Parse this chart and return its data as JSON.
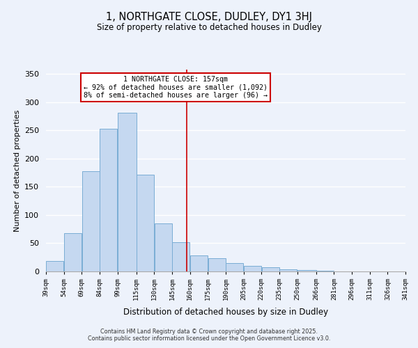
{
  "title": "1, NORTHGATE CLOSE, DUDLEY, DY1 3HJ",
  "subtitle": "Size of property relative to detached houses in Dudley",
  "xlabel": "Distribution of detached houses by size in Dudley",
  "ylabel": "Number of detached properties",
  "bin_labels": [
    "39sqm",
    "54sqm",
    "69sqm",
    "84sqm",
    "99sqm",
    "115sqm",
    "130sqm",
    "145sqm",
    "160sqm",
    "175sqm",
    "190sqm",
    "205sqm",
    "220sqm",
    "235sqm",
    "250sqm",
    "266sqm",
    "281sqm",
    "296sqm",
    "311sqm",
    "326sqm",
    "341sqm"
  ],
  "bar_left_edges": [
    39,
    54,
    69,
    84,
    99,
    115,
    130,
    145,
    160,
    175,
    190,
    205,
    220,
    235,
    250,
    266,
    281,
    296,
    311,
    326
  ],
  "bar_right_edges": [
    54,
    69,
    84,
    99,
    115,
    130,
    145,
    160,
    175,
    190,
    205,
    220,
    235,
    250,
    266,
    281,
    296,
    311,
    326,
    341
  ],
  "bar_heights": [
    19,
    68,
    178,
    253,
    282,
    172,
    85,
    52,
    29,
    23,
    15,
    10,
    7,
    4,
    2,
    1,
    0.5,
    0.2,
    0.1,
    0.3
  ],
  "bar_color": "#c5d8f0",
  "bar_edge_color": "#7aadd4",
  "vline_x": 157,
  "vline_color": "#cc0000",
  "annotation_title": "1 NORTHGATE CLOSE: 157sqm",
  "annotation_line1": "← 92% of detached houses are smaller (1,092)",
  "annotation_line2": "8% of semi-detached houses are larger (96) →",
  "annotation_box_color": "#cc0000",
  "ylim": [
    0,
    358
  ],
  "yticks": [
    0,
    50,
    100,
    150,
    200,
    250,
    300,
    350
  ],
  "xmin": 39,
  "xmax": 341,
  "background_color": "#edf2fb",
  "footer1": "Contains HM Land Registry data © Crown copyright and database right 2025.",
  "footer2": "Contains public sector information licensed under the Open Government Licence v3.0.",
  "grid_color": "#ffffff"
}
